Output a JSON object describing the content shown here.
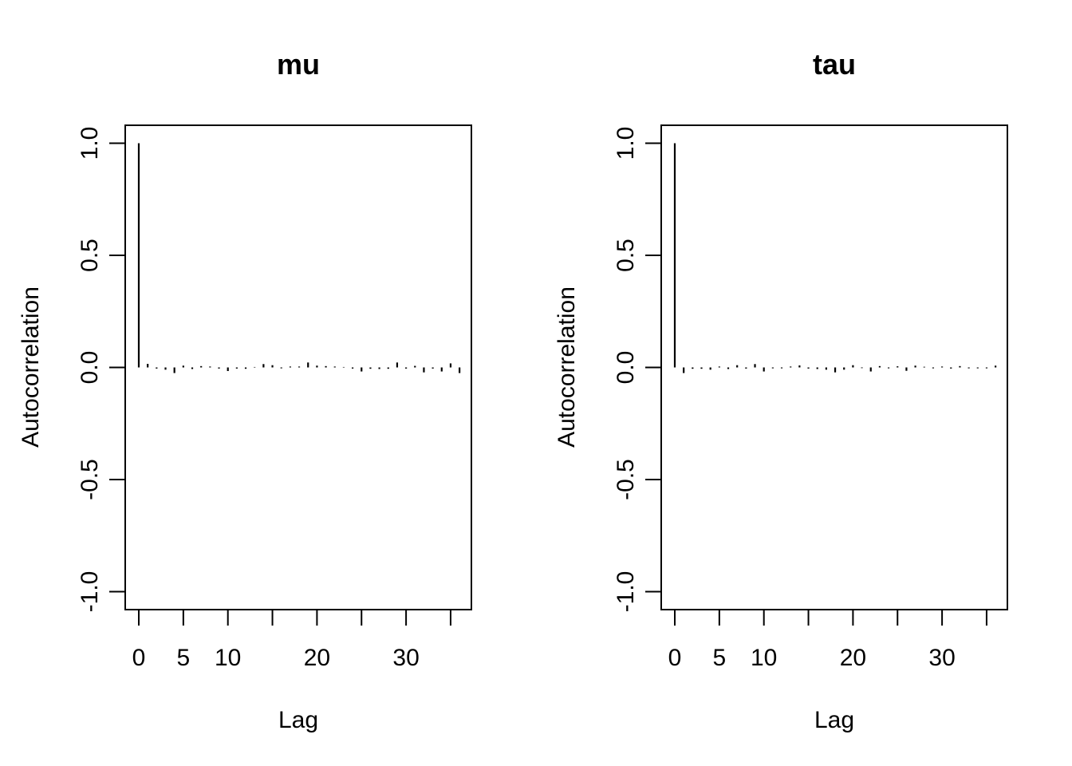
{
  "chart_data": [
    {
      "type": "bar",
      "title": "mu",
      "xlabel": "Lag",
      "ylabel": "Autocorrelation",
      "ylim": [
        -1.0,
        1.0
      ],
      "xlim": [
        0,
        35
      ],
      "y_ticks": [
        "-1.0",
        "-0.5",
        "0.0",
        "0.5",
        "1.0"
      ],
      "x_ticks": [
        "0",
        "5",
        "10",
        "",
        "20",
        "",
        "30",
        ""
      ],
      "x_tick_values": [
        0,
        5,
        10,
        15,
        20,
        25,
        30,
        35
      ],
      "lags": [
        0,
        1,
        2,
        3,
        4,
        5,
        6,
        7,
        8,
        9,
        10,
        11,
        12,
        13,
        14,
        15,
        16,
        17,
        18,
        19,
        20,
        21,
        22,
        23,
        24,
        25,
        26,
        27,
        28,
        29,
        30,
        31,
        32,
        33,
        34,
        35,
        36
      ],
      "values": [
        1.0,
        0.016,
        -0.005,
        -0.01,
        -0.025,
        0.008,
        -0.007,
        0.006,
        0.004,
        -0.005,
        -0.016,
        -0.005,
        -0.006,
        0.002,
        0.015,
        0.01,
        -0.004,
        0.004,
        0.004,
        0.022,
        0.008,
        0.006,
        0.004,
        0.002,
        -0.005,
        -0.018,
        -0.006,
        -0.007,
        -0.006,
        0.022,
        -0.005,
        0.007,
        -0.022,
        -0.005,
        -0.018,
        0.018,
        -0.025
      ]
    },
    {
      "type": "bar",
      "title": "tau",
      "xlabel": "Lag",
      "ylabel": "Autocorrelation",
      "ylim": [
        -1.0,
        1.0
      ],
      "xlim": [
        0,
        35
      ],
      "y_ticks": [
        "-1.0",
        "-0.5",
        "0.0",
        "0.5",
        "1.0"
      ],
      "x_ticks": [
        "0",
        "5",
        "10",
        "",
        "20",
        "",
        "30",
        ""
      ],
      "x_tick_values": [
        0,
        5,
        10,
        15,
        20,
        25,
        30,
        35
      ],
      "lags": [
        0,
        1,
        2,
        3,
        4,
        5,
        6,
        7,
        8,
        9,
        10,
        11,
        12,
        13,
        14,
        15,
        16,
        17,
        18,
        19,
        20,
        21,
        22,
        23,
        24,
        25,
        26,
        27,
        28,
        29,
        30,
        31,
        32,
        33,
        34,
        35,
        36
      ],
      "values": [
        1.0,
        -0.025,
        -0.006,
        -0.006,
        -0.01,
        0.004,
        -0.007,
        0.01,
        -0.005,
        0.015,
        -0.018,
        -0.004,
        -0.004,
        0.004,
        0.009,
        -0.005,
        -0.007,
        -0.01,
        -0.022,
        -0.01,
        0.01,
        -0.003,
        -0.018,
        0.006,
        -0.004,
        0.005,
        -0.015,
        0.008,
        0.003,
        -0.004,
        0.004,
        -0.005,
        0.006,
        -0.004,
        -0.004,
        -0.004,
        0.008
      ]
    }
  ]
}
